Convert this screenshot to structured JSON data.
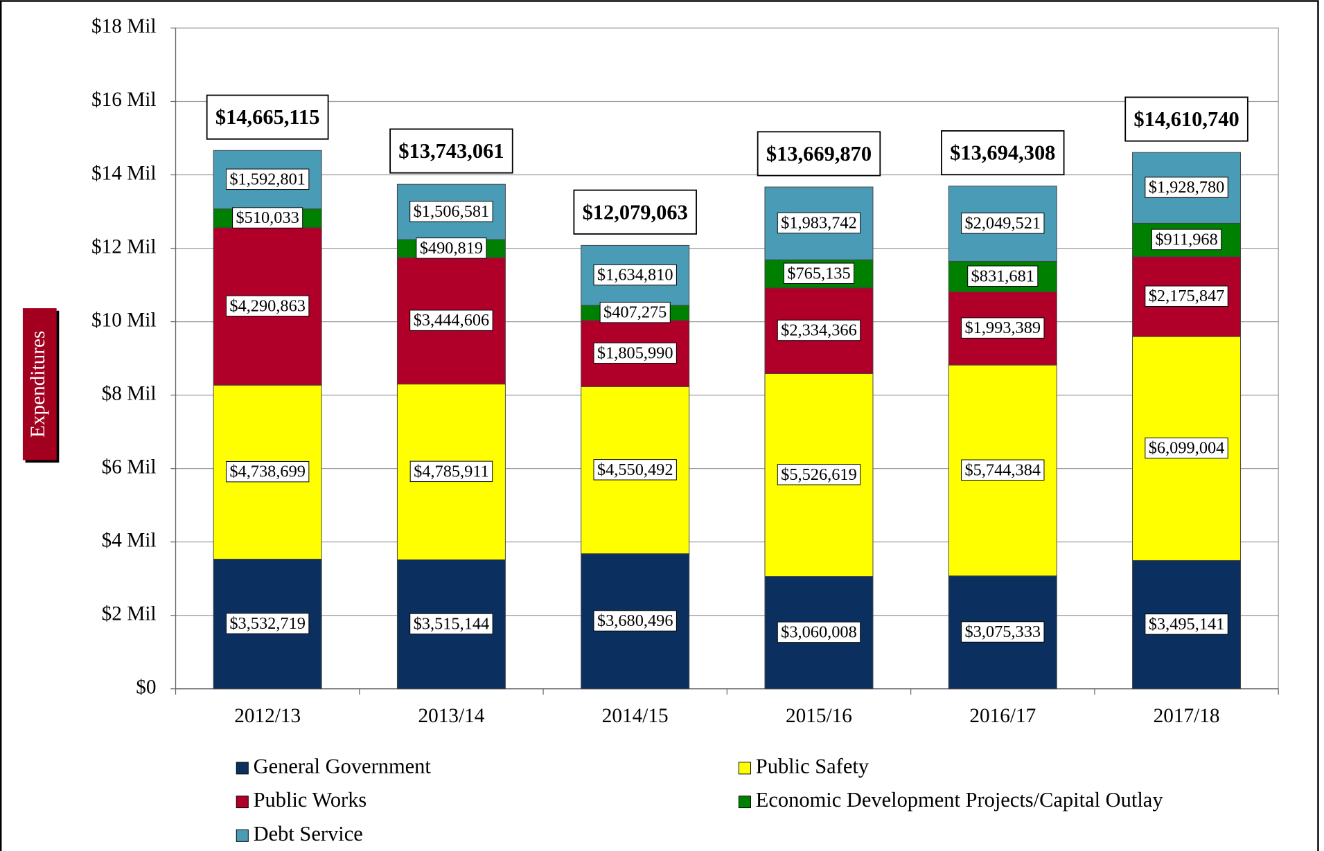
{
  "chart_data": {
    "type": "stacked-bar",
    "y_label": "Expenditures",
    "categories": [
      "2012/13",
      "2013/14",
      "2014/15",
      "2015/16",
      "2016/17",
      "2017/18"
    ],
    "series": [
      {
        "name": "General Government",
        "color": "#0b3060",
        "values": [
          3532719,
          3515144,
          3680496,
          3060008,
          3075333,
          3495141
        ],
        "value_labels": [
          "$3,532,719",
          "$3,515,144",
          "$3,680,496",
          "$3,060,008",
          "$3,075,333",
          "$3,495,141"
        ]
      },
      {
        "name": "Public Safety",
        "color": "#ffff00",
        "values": [
          4738699,
          4785911,
          4550492,
          5526619,
          5744384,
          6099004
        ],
        "value_labels": [
          "$4,738,699",
          "$4,785,911",
          "$4,550,492",
          "$5,526,619",
          "$5,744,384",
          "$6,099,004"
        ]
      },
      {
        "name": "Public Works",
        "color": "#b0002a",
        "values": [
          4290863,
          3444606,
          1805990,
          2334366,
          1993389,
          2175847
        ],
        "value_labels": [
          "$4,290,863",
          "$3,444,606",
          "$1,805,990",
          "$2,334,366",
          "$1,993,389",
          "$2,175,847"
        ]
      },
      {
        "name": "Economic Development Projects/Capital Outlay",
        "color": "#008000",
        "values": [
          510033,
          490819,
          407275,
          765135,
          831681,
          911968
        ],
        "value_labels": [
          "$510,033",
          "$490,819",
          "$407,275",
          "$765,135",
          "$831,681",
          "$911,968"
        ]
      },
      {
        "name": "Debt Service",
        "color": "#4a9bb5",
        "values": [
          1592801,
          1506581,
          1634810,
          1983742,
          2049521,
          1928780
        ],
        "value_labels": [
          "$1,592,801",
          "$1,506,581",
          "$1,634,810",
          "$1,983,742",
          "$2,049,521",
          "$1,928,780"
        ]
      }
    ],
    "totals": [
      14665115,
      13743061,
      12079063,
      13669870,
      13694308,
      14610740
    ],
    "total_labels": [
      "$14,665,115",
      "$13,743,061",
      "$12,079,063",
      "$13,669,870",
      "$13,694,308",
      "$14,610,740"
    ],
    "ylim": [
      0,
      18000000
    ],
    "yticks": [
      {
        "value": 0,
        "label": "$0"
      },
      {
        "value": 2000000,
        "label": "$2 Mil"
      },
      {
        "value": 4000000,
        "label": "$4 Mil"
      },
      {
        "value": 6000000,
        "label": "$6 Mil"
      },
      {
        "value": 8000000,
        "label": "$8 Mil"
      },
      {
        "value": 10000000,
        "label": "$10 Mil"
      },
      {
        "value": 12000000,
        "label": "$12 Mil"
      },
      {
        "value": 14000000,
        "label": "$14 Mil"
      },
      {
        "value": 16000000,
        "label": "$16 Mil"
      },
      {
        "value": 18000000,
        "label": "$18 Mil"
      }
    ],
    "grid": true
  }
}
